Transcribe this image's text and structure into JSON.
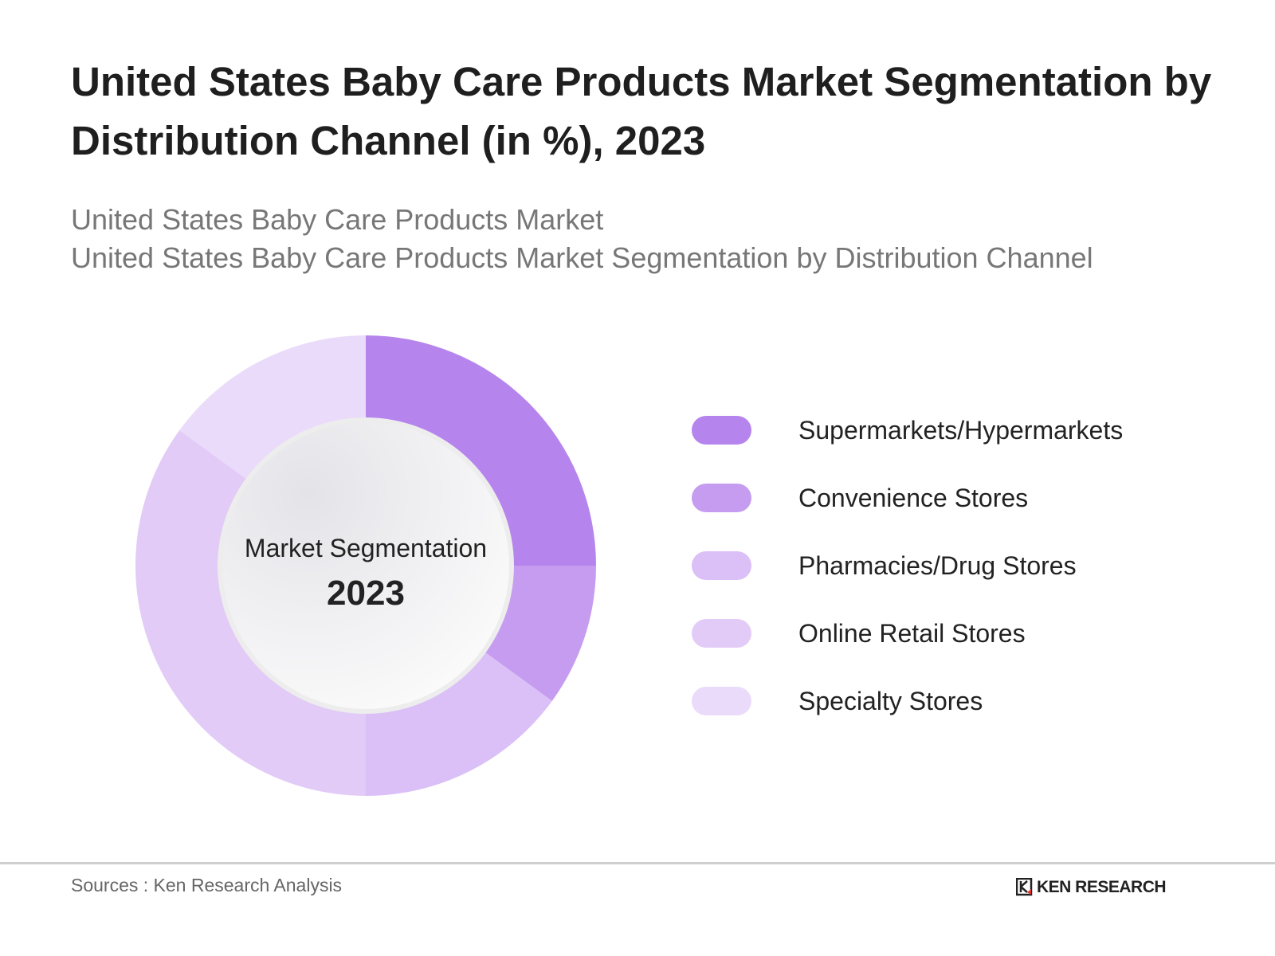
{
  "header": {
    "title": "United States Baby Care Products Market Segmentation by Distribution Channel (in %), 2023",
    "subtitle_line1": "United States Baby Care Products Market",
    "subtitle_line2": "United States Baby Care Products Market Segmentation by Distribution Channel"
  },
  "chart_data": {
    "type": "pie",
    "subtype": "donut",
    "title": "United States Baby Care Products Market Segmentation by Distribution Channel (in %), 2023",
    "center_label": "Market Segmentation",
    "center_value": "2023",
    "categories": [
      "Supermarkets/Hypermarkets",
      "Convenience Stores",
      "Pharmacies/Drug Stores",
      "Online Retail Stores",
      "Specialty Stores"
    ],
    "values": [
      25,
      10,
      15,
      35,
      15
    ],
    "colors": [
      "#b584ec",
      "#c59cef",
      "#dbbff7",
      "#e2cbf7",
      "#eadbfa"
    ],
    "legend_position": "right"
  },
  "footer": {
    "source": "Sources : Ken Research Analysis",
    "logo_text": "KEN RESEARCH"
  }
}
